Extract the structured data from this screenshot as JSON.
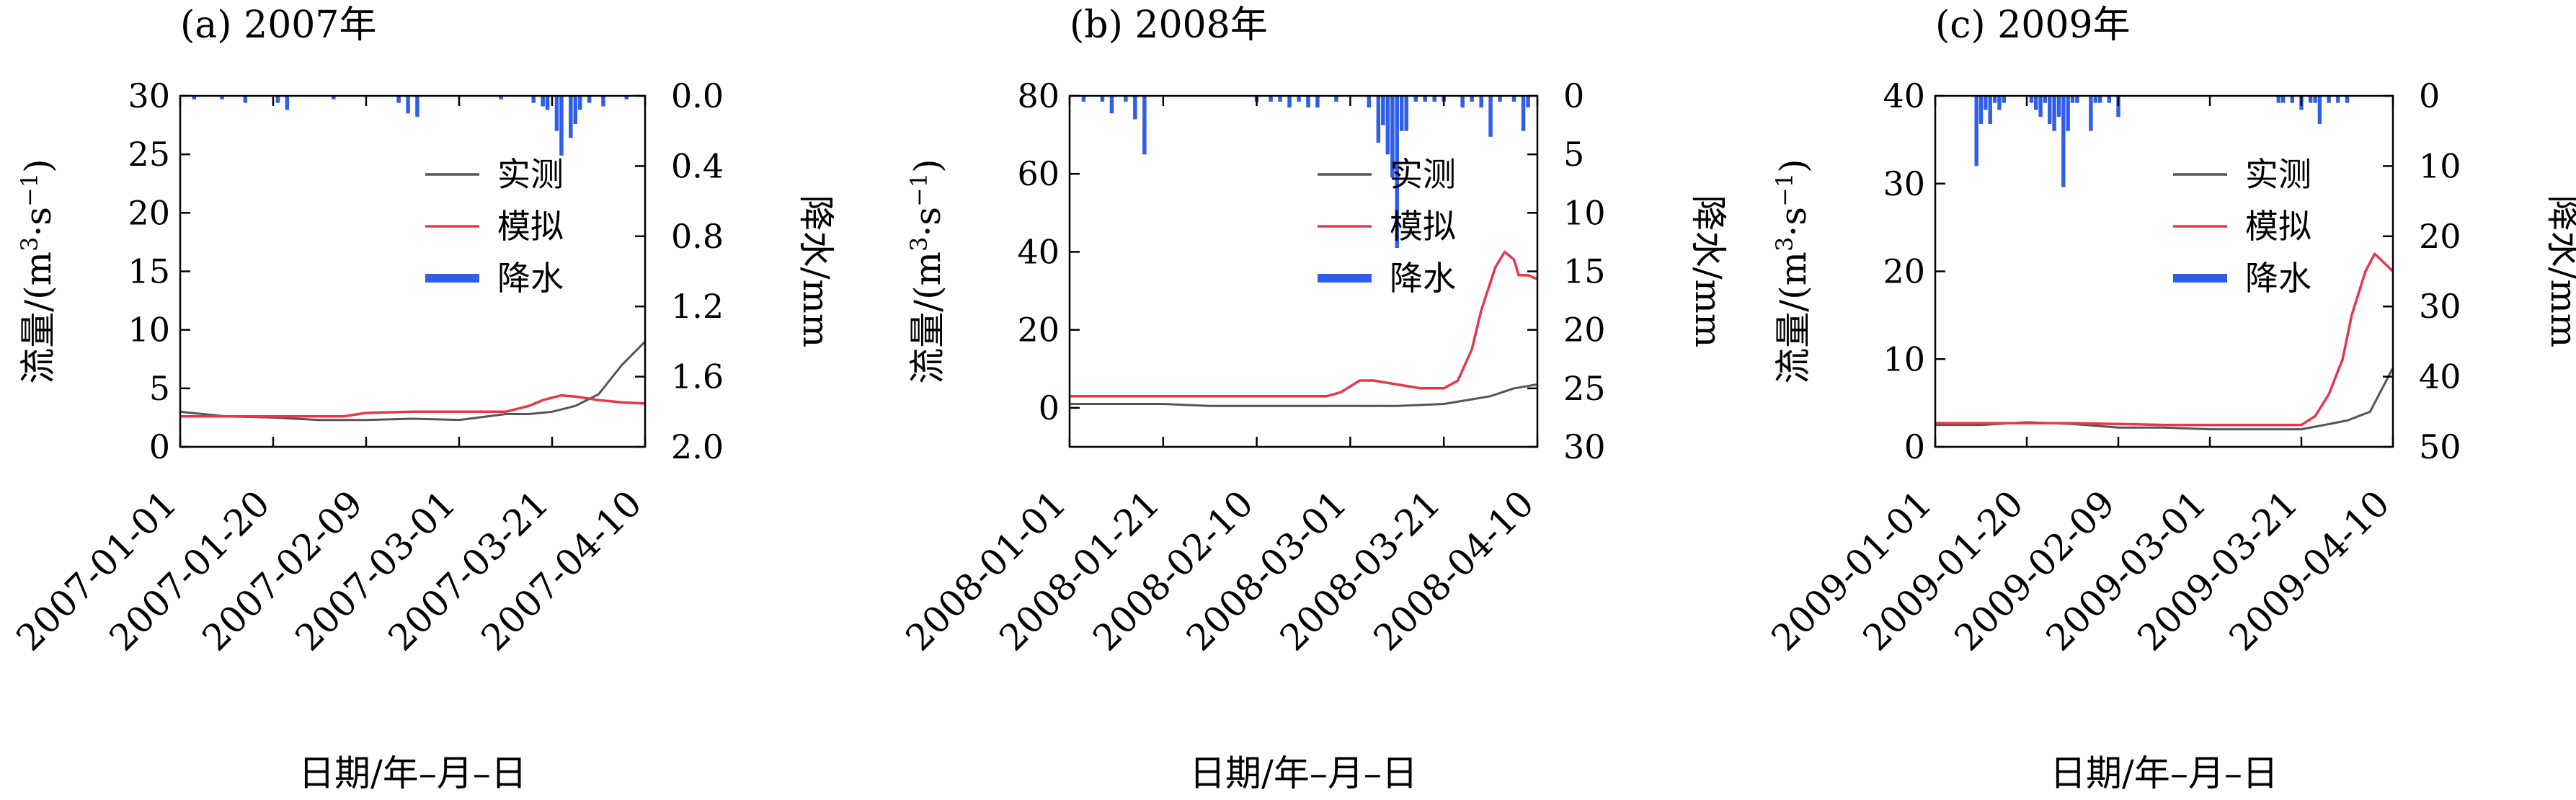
{
  "figure": {
    "colors": {
      "observed": "#555555",
      "simulated": "#e8364a",
      "precipitation": "#2f5fe8",
      "axis": "#000000"
    }
  },
  "chart_data": [
    {
      "type": "line",
      "panel_label": "(a) 2007年",
      "xlabel": "日期/年–月–日",
      "ylabel": "流量/(m³·s⁻¹)",
      "ylabel_base": "流量/(m",
      "ylabel_sup1": "3",
      "ylabel_mid": "·s",
      "ylabel_sup2": "−1",
      "ylabel_end": ")",
      "y2label": "降水/mm",
      "date_ticks": [
        "2007-01-01",
        "2007-01-20",
        "2007-02-09",
        "2007-03-01",
        "2007-03-21",
        "2007-04-10"
      ],
      "ylim": [
        0,
        30
      ],
      "yticks": [
        0,
        5,
        10,
        15,
        20,
        25,
        30
      ],
      "y2lim": [
        0,
        2.0
      ],
      "y2ticks": [
        0.0,
        0.4,
        0.8,
        1.2,
        1.6,
        2.0
      ],
      "y2tick_labels": [
        "0.0",
        "0.4",
        "0.8",
        "1.2",
        "1.6",
        "2.0"
      ],
      "days": 100,
      "legend": [
        "实测",
        "模拟",
        "降水"
      ],
      "legend_position": "upper-right",
      "series": [
        {
          "name": "实测",
          "x": [
            0,
            10,
            20,
            30,
            40,
            50,
            60,
            70,
            75,
            80,
            85,
            90,
            95,
            100
          ],
          "values": [
            3.0,
            2.6,
            2.5,
            2.3,
            2.3,
            2.4,
            2.3,
            2.8,
            2.8,
            3.0,
            3.5,
            4.5,
            7.0,
            9.0
          ]
        },
        {
          "name": "模拟",
          "x": [
            0,
            10,
            20,
            30,
            35,
            40,
            50,
            60,
            70,
            75,
            78,
            82,
            85,
            90,
            95,
            100
          ],
          "values": [
            2.6,
            2.6,
            2.6,
            2.6,
            2.6,
            2.9,
            3.0,
            3.0,
            3.0,
            3.5,
            4.0,
            4.4,
            4.3,
            4.0,
            3.8,
            3.7
          ]
        },
        {
          "name": "降水",
          "x": [
            3,
            9,
            14,
            21,
            23,
            33,
            47,
            49,
            51,
            69,
            76,
            78,
            79,
            81,
            82,
            84,
            85,
            86,
            88,
            91,
            96
          ],
          "values": [
            0.02,
            0.02,
            0.04,
            0.04,
            0.08,
            0.02,
            0.04,
            0.1,
            0.12,
            0.02,
            0.04,
            0.06,
            0.08,
            0.2,
            0.34,
            0.24,
            0.16,
            0.08,
            0.04,
            0.06,
            0.02
          ]
        }
      ]
    },
    {
      "type": "line",
      "panel_label": "(b) 2008年",
      "xlabel": "日期/年–月–日",
      "ylabel": "流量/(m³·s⁻¹)",
      "ylabel_base": "流量/(m",
      "ylabel_sup1": "3",
      "ylabel_mid": "·s",
      "ylabel_sup2": "−1",
      "ylabel_end": ")",
      "y2label": "降水/mm",
      "date_ticks": [
        "2008-01-01",
        "2008-01-21",
        "2008-02-10",
        "2008-03-01",
        "2008-03-21",
        "2008-04-10"
      ],
      "ylim": [
        -10,
        80
      ],
      "yticks": [
        0,
        20,
        40,
        60,
        80
      ],
      "y2lim": [
        0,
        30
      ],
      "y2ticks": [
        0,
        5,
        10,
        15,
        20,
        25,
        30
      ],
      "y2tick_labels": [
        "0",
        "5",
        "10",
        "15",
        "20",
        "25",
        "30"
      ],
      "days": 100,
      "legend": [
        "实测",
        "模拟",
        "降水"
      ],
      "legend_position": "upper-right",
      "series": [
        {
          "name": "实测",
          "x": [
            0,
            10,
            20,
            30,
            40,
            50,
            60,
            70,
            80,
            85,
            90,
            95,
            100
          ],
          "values": [
            1.0,
            1.0,
            1.0,
            0.5,
            0.5,
            0.5,
            0.5,
            0.5,
            1.0,
            2.0,
            3.0,
            5.0,
            6.0
          ]
        },
        {
          "name": "模拟",
          "x": [
            0,
            10,
            20,
            30,
            40,
            50,
            55,
            58,
            62,
            65,
            70,
            75,
            80,
            83,
            86,
            88,
            91,
            93,
            95,
            96,
            98,
            100
          ],
          "values": [
            3.0,
            3.0,
            3.0,
            3.0,
            3.0,
            3.0,
            3.0,
            4.0,
            7.0,
            7.0,
            6.0,
            5.0,
            5.0,
            7.0,
            15.0,
            25.0,
            36.0,
            40.0,
            38.0,
            34.0,
            34.0,
            33.0
          ]
        },
        {
          "name": "降水",
          "x": [
            3,
            7,
            9,
            12,
            14,
            16,
            40,
            43,
            45,
            47,
            49,
            51,
            53,
            57,
            64,
            66,
            67,
            68,
            69,
            70,
            71,
            72,
            74,
            76,
            78,
            80,
            84,
            86,
            88,
            90,
            92,
            95,
            97,
            98
          ],
          "values": [
            0.5,
            0.5,
            1.5,
            0.5,
            2.0,
            5.0,
            0.5,
            0.5,
            0.5,
            1.0,
            0.5,
            1.0,
            1.0,
            0.5,
            1.0,
            4.0,
            2.5,
            5.0,
            7.0,
            13.0,
            3.0,
            3.0,
            0.5,
            0.5,
            0.5,
            0.5,
            1.0,
            0.5,
            1.0,
            3.5,
            0.5,
            0.5,
            3.0,
            1.0
          ]
        }
      ]
    },
    {
      "type": "line",
      "panel_label": "(c) 2009年",
      "xlabel": "日期/年–月–日",
      "ylabel": "流量/(m³·s⁻¹)",
      "ylabel_base": "流量/(m",
      "ylabel_sup1": "3",
      "ylabel_mid": "·s",
      "ylabel_sup2": "−1",
      "ylabel_end": ")",
      "y2label": "降水/mm",
      "date_ticks": [
        "2009-01-01",
        "2009-01-20",
        "2009-02-09",
        "2009-03-01",
        "2009-03-21",
        "2009-04-10"
      ],
      "ylim": [
        0,
        40
      ],
      "yticks": [
        0,
        10,
        20,
        30,
        40
      ],
      "y2lim": [
        0,
        50
      ],
      "y2ticks": [
        0,
        10,
        20,
        30,
        40,
        50
      ],
      "y2tick_labels": [
        "0",
        "10",
        "20",
        "30",
        "40",
        "50"
      ],
      "days": 100,
      "legend": [
        "实测",
        "模拟",
        "降水"
      ],
      "legend_position": "upper-right",
      "series": [
        {
          "name": "实测",
          "x": [
            0,
            10,
            20,
            30,
            40,
            50,
            60,
            70,
            80,
            85,
            90,
            95,
            100
          ],
          "values": [
            2.5,
            2.5,
            2.8,
            2.6,
            2.2,
            2.2,
            2.0,
            2.0,
            2.0,
            2.5,
            3.0,
            4.0,
            9.0
          ]
        },
        {
          "name": "模拟",
          "x": [
            0,
            10,
            20,
            30,
            40,
            50,
            60,
            70,
            75,
            80,
            83,
            86,
            89,
            91,
            94,
            96,
            98,
            100
          ],
          "values": [
            2.7,
            2.7,
            2.7,
            2.7,
            2.6,
            2.5,
            2.5,
            2.5,
            2.5,
            2.5,
            3.5,
            6.0,
            10.0,
            15.0,
            20.0,
            22.0,
            21.0,
            20.0
          ]
        },
        {
          "name": "降水",
          "x": [
            9,
            10,
            11,
            12,
            13,
            14,
            15,
            21,
            22,
            23,
            24,
            25,
            26,
            27,
            28,
            29,
            30,
            31,
            34,
            35,
            36,
            38,
            40,
            75,
            76,
            78,
            80,
            82,
            83,
            84,
            86,
            88,
            90
          ],
          "values": [
            10.0,
            4.0,
            2.0,
            4.0,
            1.0,
            2.0,
            1.0,
            1.0,
            2.0,
            3.0,
            1.0,
            4.0,
            5.0,
            3.0,
            13.0,
            5.0,
            1.0,
            1.0,
            5.0,
            1.0,
            1.0,
            1.0,
            3.0,
            1.0,
            1.0,
            1.0,
            2.0,
            1.0,
            1.0,
            4.0,
            1.0,
            1.0,
            1.0
          ]
        }
      ]
    }
  ]
}
